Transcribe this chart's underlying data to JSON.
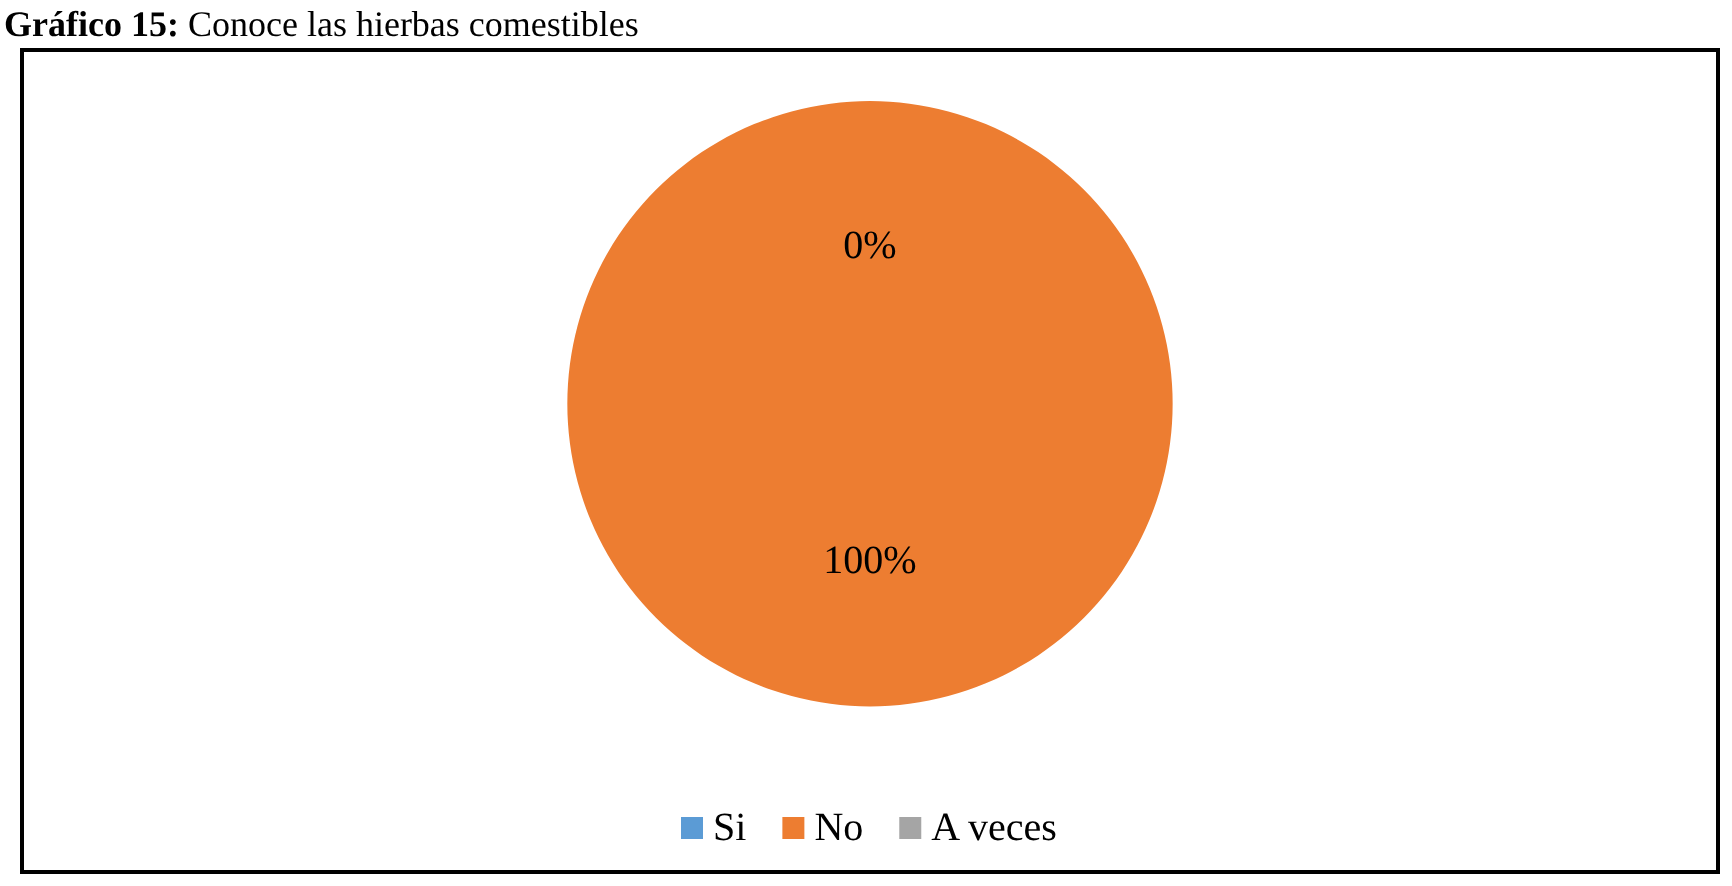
{
  "chart_data": {
    "type": "pie",
    "title": "Gráfico 15: Conoce las hierbas comestibles",
    "categories": [
      "Si",
      "No",
      "A veces"
    ],
    "values": [
      0,
      100,
      0
    ],
    "colors": [
      "#5b9bd5",
      "#ed7d31",
      "#a5a5a5"
    ],
    "value_labels": [
      "0%",
      "100%",
      null
    ],
    "legend": "bottom"
  }
}
